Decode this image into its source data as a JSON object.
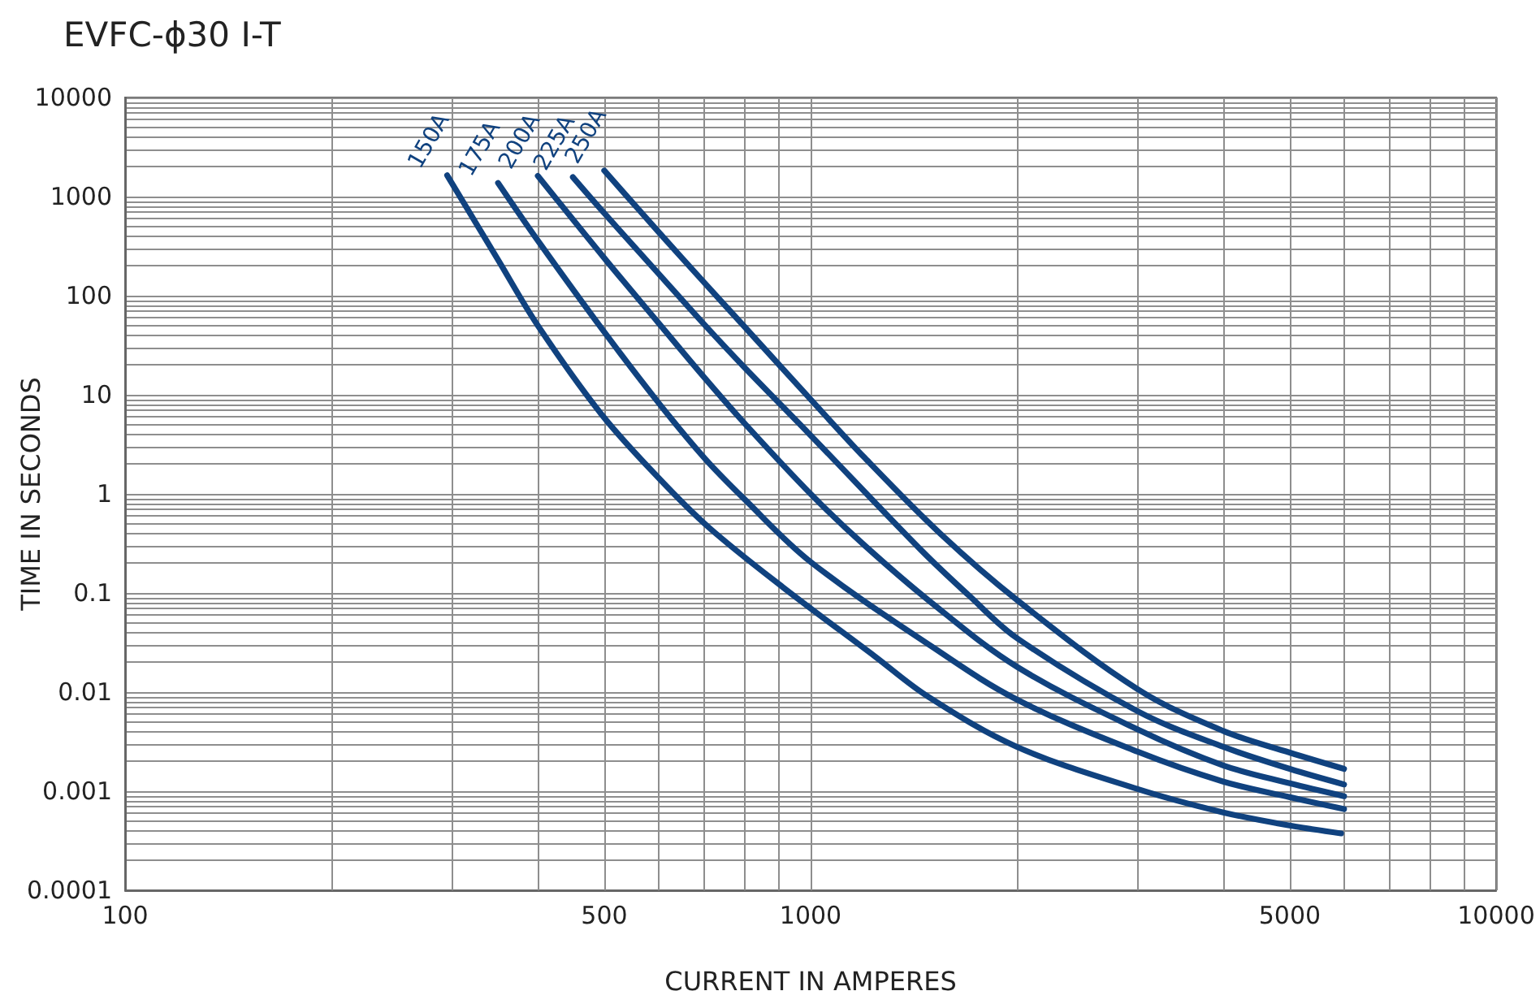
{
  "chart_data": {
    "type": "line",
    "title": "EVFC-ϕ30 I-T",
    "xlabel": "CURRENT IN AMPERES",
    "ylabel": "TIME IN SECONDS",
    "log": "xy",
    "grid": true,
    "marker": "none",
    "line_style": "solid",
    "xlim": [
      100,
      10000
    ],
    "ylim": [
      0.0001,
      10000
    ],
    "xticks": [
      100,
      {
        "value": 200,
        "label": null
      },
      {
        "value": 300,
        "label": null
      },
      {
        "value": 400,
        "label": null
      },
      500,
      {
        "value": 600,
        "label": null
      },
      {
        "value": 700,
        "label": null
      },
      {
        "value": 800,
        "label": null
      },
      {
        "value": 900,
        "label": null
      },
      1000,
      {
        "value": 2000,
        "label": null
      },
      {
        "value": 3000,
        "label": null
      },
      {
        "value": 4000,
        "label": null
      },
      5000,
      {
        "value": 6000,
        "label": null
      },
      {
        "value": 7000,
        "label": null
      },
      {
        "value": 8000,
        "label": null
      },
      {
        "value": 9000,
        "label": null
      },
      10000
    ],
    "yticks": [
      0.0001,
      {
        "value": 0.0002,
        "label": null
      },
      {
        "value": 0.0003,
        "label": null
      },
      {
        "value": 0.0004,
        "label": null
      },
      {
        "value": 0.0005,
        "label": null
      },
      {
        "value": 0.0006,
        "label": null
      },
      {
        "value": 0.0007,
        "label": null
      },
      {
        "value": 0.0008,
        "label": null
      },
      {
        "value": 0.0009,
        "label": null
      },
      0.001,
      {
        "value": 0.002,
        "label": null
      },
      {
        "value": 0.003,
        "label": null
      },
      {
        "value": 0.004,
        "label": null
      },
      {
        "value": 0.005,
        "label": null
      },
      {
        "value": 0.006,
        "label": null
      },
      {
        "value": 0.007,
        "label": null
      },
      {
        "value": 0.008,
        "label": null
      },
      {
        "value": 0.009,
        "label": null
      },
      0.01,
      {
        "value": 0.02,
        "label": null
      },
      {
        "value": 0.03,
        "label": null
      },
      {
        "value": 0.04,
        "label": null
      },
      {
        "value": 0.05,
        "label": null
      },
      {
        "value": 0.06,
        "label": null
      },
      {
        "value": 0.07,
        "label": null
      },
      {
        "value": 0.08,
        "label": null
      },
      {
        "value": 0.09,
        "label": null
      },
      0.1,
      {
        "value": 0.2,
        "label": null
      },
      {
        "value": 0.3,
        "label": null
      },
      {
        "value": 0.4,
        "label": null
      },
      {
        "value": 0.5,
        "label": null
      },
      {
        "value": 0.6,
        "label": null
      },
      {
        "value": 0.7,
        "label": null
      },
      {
        "value": 0.8,
        "label": null
      },
      {
        "value": 0.9,
        "label": null
      },
      1,
      {
        "value": 2,
        "label": null
      },
      {
        "value": 3,
        "label": null
      },
      {
        "value": 4,
        "label": null
      },
      {
        "value": 5,
        "label": null
      },
      {
        "value": 6,
        "label": null
      },
      {
        "value": 7,
        "label": null
      },
      {
        "value": 8,
        "label": null
      },
      {
        "value": 9,
        "label": null
      },
      10,
      {
        "value": 20,
        "label": null
      },
      {
        "value": 30,
        "label": null
      },
      {
        "value": 40,
        "label": null
      },
      {
        "value": 50,
        "label": null
      },
      {
        "value": 60,
        "label": null
      },
      {
        "value": 70,
        "label": null
      },
      {
        "value": 80,
        "label": null
      },
      {
        "value": 90,
        "label": null
      },
      100,
      {
        "value": 200,
        "label": null
      },
      {
        "value": 300,
        "label": null
      },
      {
        "value": 400,
        "label": null
      },
      {
        "value": 500,
        "label": null
      },
      {
        "value": 600,
        "label": null
      },
      {
        "value": 700,
        "label": null
      },
      {
        "value": 800,
        "label": null
      },
      {
        "value": 900,
        "label": null
      },
      1000,
      {
        "value": 2000,
        "label": null
      },
      {
        "value": 3000,
        "label": null
      },
      {
        "value": 4000,
        "label": null
      },
      {
        "value": 5000,
        "label": null
      },
      {
        "value": 6000,
        "label": null
      },
      {
        "value": 7000,
        "label": null
      },
      {
        "value": 8000,
        "label": null
      },
      {
        "value": 9000,
        "label": null
      },
      10000
    ],
    "series": [
      {
        "name": "150A",
        "color": "#10427f",
        "x": [
          295,
          350,
          400,
          495,
          600,
          710,
          910,
          1240,
          1480,
          2000,
          3000,
          4000,
          5000,
          5940
        ],
        "values": [
          1640,
          230,
          50,
          6.4,
          1.45,
          0.46,
          0.115,
          0.023,
          0.0091,
          0.0028,
          0.00105,
          0.00061,
          0.00045,
          0.000375
        ]
      },
      {
        "name": "175A",
        "color": "#10427f",
        "x": [
          350,
          400,
          500,
          600,
          700,
          800,
          1000,
          1500,
          2000,
          3000,
          4000,
          5000,
          6000
        ],
        "values": [
          1370,
          360,
          43,
          8.3,
          2.3,
          0.89,
          0.206,
          0.029,
          0.0084,
          0.0025,
          0.00125,
          0.00087,
          0.00066
        ]
      },
      {
        "name": "200A",
        "color": "#10427f",
        "x": [
          400,
          500,
          600,
          700,
          800,
          1000,
          1200,
          1500,
          2000,
          3000,
          4000,
          5000,
          6000
        ],
        "values": [
          1620,
          240,
          53,
          14.9,
          5.2,
          1.0,
          0.3,
          0.08,
          0.018,
          0.0042,
          0.00182,
          0.0012,
          0.00089
        ]
      },
      {
        "name": "225A",
        "color": "#10427f",
        "x": [
          450,
          500,
          600,
          700,
          800,
          1000,
          1450,
          1700,
          2000,
          3000,
          4000,
          5000,
          6000
        ],
        "values": [
          1570,
          680,
          167,
          51,
          19,
          3.9,
          0.27,
          0.095,
          0.035,
          0.0064,
          0.0028,
          0.00168,
          0.00117
        ]
      },
      {
        "name": "250A",
        "color": "#10427f",
        "x": [
          500,
          600,
          700,
          800,
          1000,
          1200,
          1550,
          2000,
          3000,
          4000,
          5000,
          6000
        ],
        "values": [
          1830,
          440,
          135,
          49,
          9,
          2.3,
          0.39,
          0.085,
          0.0107,
          0.00405,
          0.00245,
          0.00168
        ]
      }
    ]
  }
}
